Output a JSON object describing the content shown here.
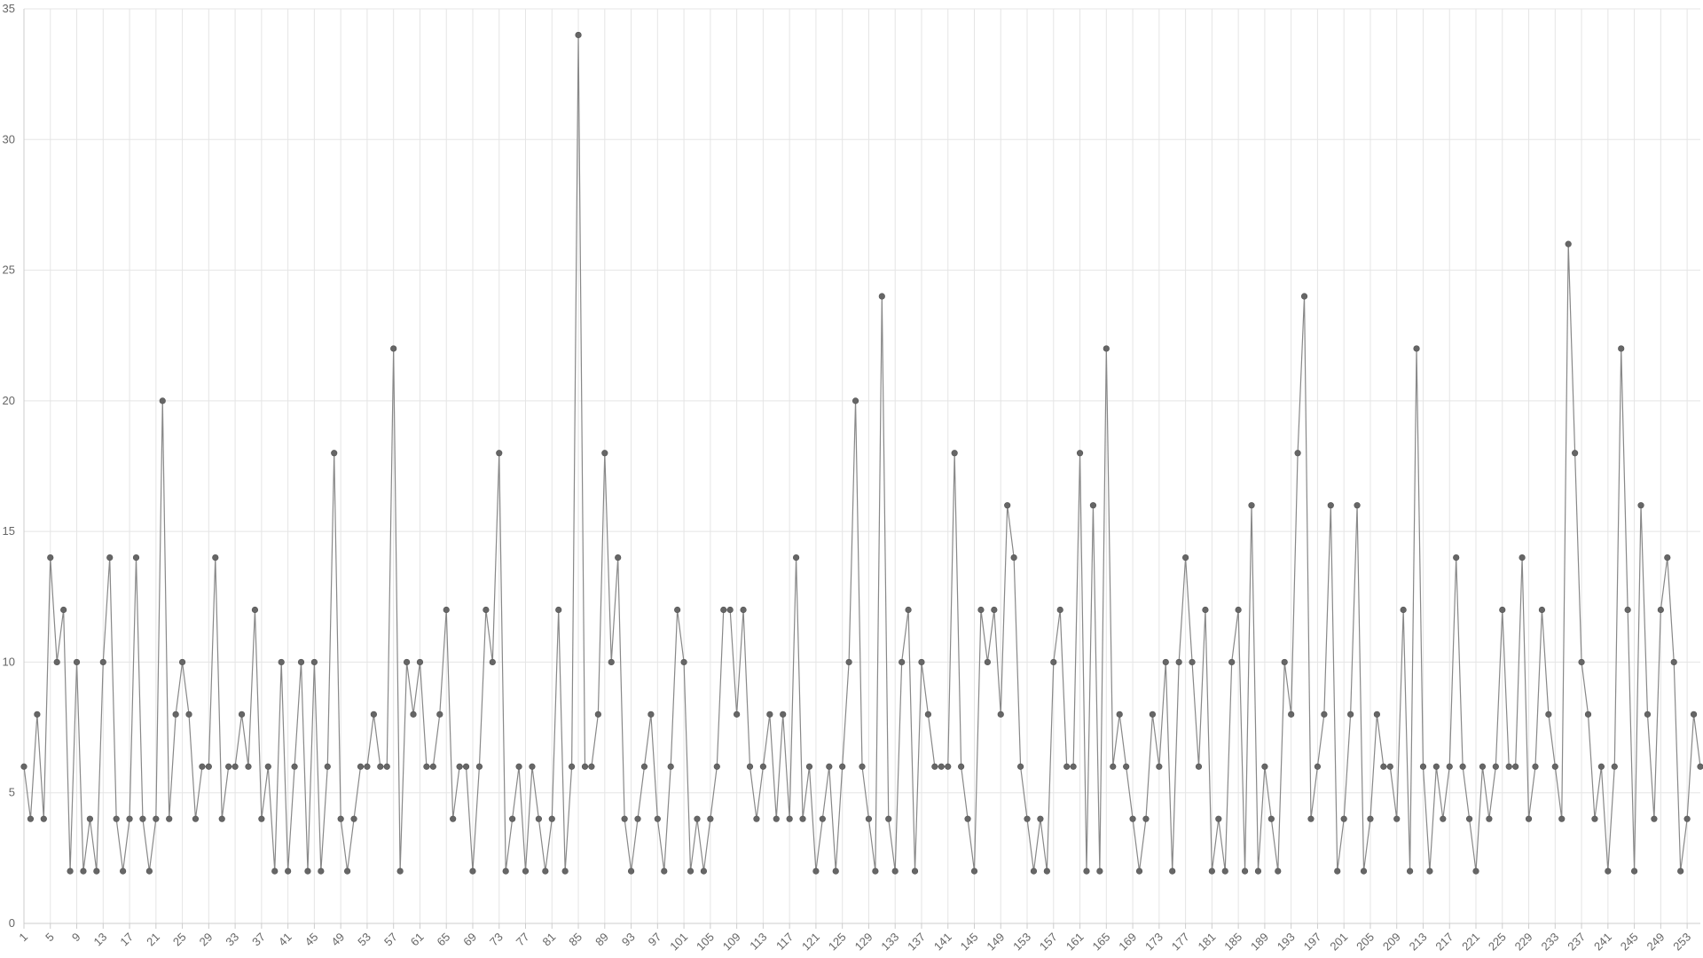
{
  "chart_data": {
    "type": "line",
    "title": "",
    "xlabel": "",
    "ylabel": "",
    "x_start": 1,
    "xlim": [
      1,
      256
    ],
    "ylim": [
      0,
      35
    ],
    "y_ticks": [
      "0",
      "5",
      "10",
      "15",
      "20",
      "25",
      "30",
      "35"
    ],
    "x_tick_labels": [
      "1",
      "5",
      "9",
      "13",
      "17",
      "21",
      "25",
      "29",
      "33",
      "37",
      "41",
      "45",
      "49",
      "53",
      "57",
      "61",
      "65",
      "69",
      "73",
      "77",
      "81",
      "85",
      "89",
      "93",
      "97",
      "101",
      "105",
      "109",
      "113",
      "117",
      "121",
      "125",
      "129",
      "133",
      "137",
      "141",
      "145",
      "149",
      "153",
      "157",
      "161",
      "165",
      "169",
      "173",
      "177",
      "181",
      "185",
      "189",
      "193",
      "197",
      "201",
      "205",
      "209",
      "213",
      "217",
      "221",
      "225",
      "229",
      "233",
      "237",
      "241",
      "245",
      "249",
      "253"
    ],
    "grid": true,
    "legend": "none",
    "colors": {
      "line": "#888888",
      "point": "#666666",
      "grid": "#e5e5e5",
      "axis": "#cccccc"
    },
    "series": [
      {
        "values": [
          6,
          4,
          8,
          4,
          14,
          10,
          12,
          2,
          10,
          2,
          4,
          2,
          10,
          14,
          4,
          2,
          4,
          14,
          4,
          2,
          4,
          20,
          4,
          8,
          10,
          8,
          4,
          6,
          6,
          14,
          4,
          6,
          6,
          8,
          6,
          12,
          4,
          6,
          2,
          10,
          2,
          6,
          10,
          2,
          10,
          2,
          6,
          18,
          4,
          2,
          4,
          6,
          6,
          8,
          6,
          6,
          22,
          2,
          10,
          8,
          10,
          6,
          6,
          8,
          12,
          4,
          6,
          6,
          2,
          6,
          12,
          10,
          18,
          2,
          4,
          6,
          2,
          6,
          4,
          2,
          4,
          12,
          2,
          6,
          34,
          6,
          6,
          8,
          18,
          10,
          14,
          4,
          2,
          4,
          6,
          8,
          4,
          2,
          6,
          12,
          10,
          2,
          4,
          2,
          4,
          6,
          12,
          12,
          8,
          12,
          6,
          4,
          6,
          8,
          4,
          8,
          4,
          14,
          4,
          6,
          2,
          4,
          6,
          2,
          6,
          10,
          20,
          6,
          4,
          2,
          24,
          4,
          2,
          10,
          12,
          2,
          10,
          8,
          6,
          6,
          6,
          18,
          6,
          4,
          2,
          12,
          10,
          12,
          8,
          16,
          14,
          6,
          4,
          2,
          4,
          2,
          10,
          12,
          6,
          6,
          18,
          2,
          16,
          2,
          22,
          6,
          8,
          6,
          4,
          2,
          4,
          8,
          6,
          10,
          2,
          10,
          14,
          10,
          6,
          12,
          2,
          4,
          2,
          10,
          12,
          2,
          16,
          2,
          6,
          4,
          2,
          10,
          8,
          18,
          24,
          4,
          6,
          8,
          16,
          2,
          4,
          8,
          16,
          2,
          4,
          8,
          6,
          6,
          4,
          12,
          2,
          22,
          6,
          2,
          6,
          4,
          6,
          14,
          6,
          4,
          2,
          6,
          4,
          6,
          12,
          6,
          6,
          14,
          4,
          6,
          12,
          8,
          6,
          4,
          26,
          18,
          10,
          8,
          4,
          6,
          2,
          6,
          22,
          12,
          2,
          16,
          8,
          4,
          12,
          14,
          10,
          2,
          4,
          8,
          6
        ]
      }
    ]
  }
}
